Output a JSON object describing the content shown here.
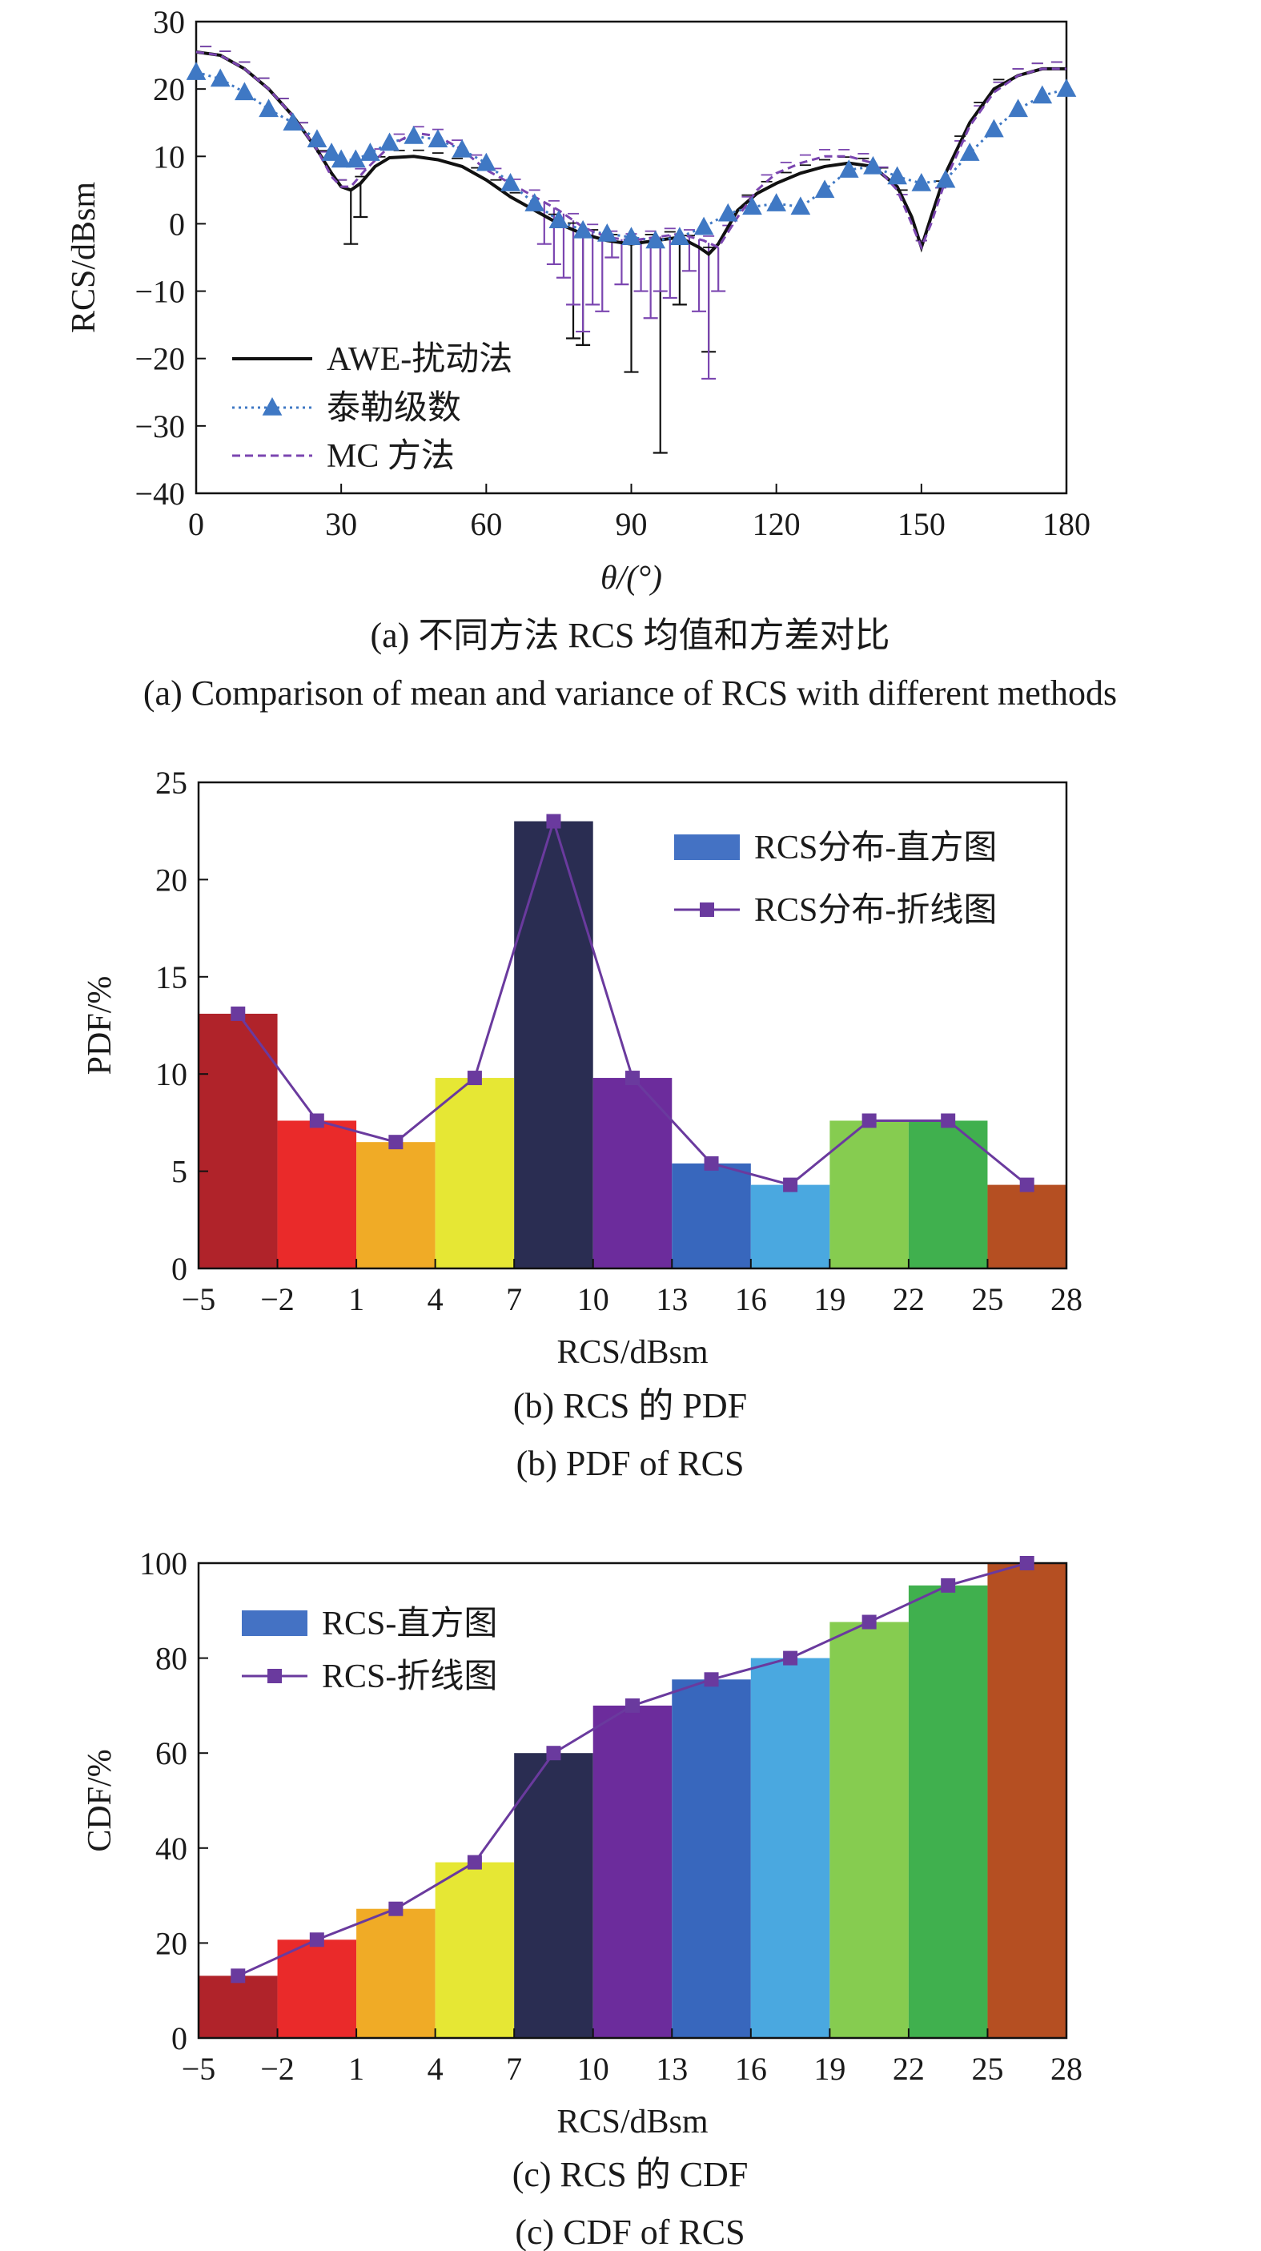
{
  "chart_data": [
    {
      "type": "line",
      "xlabel": "θ/(°)",
      "ylabel": "RCS/dBsm",
      "xlim": [
        0,
        180
      ],
      "ylim": [
        -40,
        30
      ],
      "xticks": [
        "0",
        "30",
        "60",
        "90",
        "120",
        "150",
        "180"
      ],
      "yticks": [
        "30",
        "20",
        "10",
        "0",
        "−10",
        "−20",
        "−30",
        "−40"
      ],
      "legend_position": "bottom-left",
      "caption_zh": "(a) 不同方法 RCS 均值和方差对比",
      "caption_en": "(a) Comparison of mean and variance of RCS with different methods",
      "colors": {
        "awe": "#111111",
        "taylor": "#3f78c4",
        "mc": "#7b46b0"
      },
      "series": [
        {
          "name": "AWE-扰动法",
          "style": "solid-black",
          "x": [
            0,
            5,
            10,
            15,
            20,
            25,
            28,
            30,
            32,
            34,
            37,
            40,
            45,
            50,
            55,
            60,
            65,
            70,
            75,
            80,
            85,
            90,
            95,
            100,
            104,
            106,
            108,
            112,
            116,
            120,
            125,
            130,
            135,
            140,
            145,
            148,
            150,
            152,
            155,
            160,
            165,
            170,
            175,
            180
          ],
          "y": [
            25.5,
            25,
            23,
            20,
            16,
            11,
            7.5,
            5.5,
            5,
            6,
            8.5,
            9.8,
            10,
            9.5,
            8.5,
            6.5,
            4,
            2,
            0,
            -1.5,
            -2.5,
            -3,
            -2.5,
            -2,
            -3.5,
            -4.5,
            -3,
            2,
            4.5,
            6,
            7.5,
            8.5,
            9,
            8.5,
            5.5,
            1,
            -3.5,
            1,
            7.5,
            15,
            20,
            22,
            23,
            23
          ]
        },
        {
          "name": "泰勒级数",
          "style": "dotted-triangle-blue",
          "x": [
            0,
            5,
            10,
            15,
            20,
            25,
            28,
            30,
            33,
            36,
            40,
            45,
            50,
            55,
            60,
            65,
            70,
            75,
            80,
            85,
            90,
            95,
            100,
            105,
            110,
            115,
            120,
            125,
            130,
            135,
            140,
            145,
            150,
            155,
            160,
            165,
            170,
            175,
            180
          ],
          "y": [
            22.5,
            21.5,
            19.5,
            17,
            15,
            12.5,
            10.5,
            9.5,
            9.5,
            10.5,
            12,
            13,
            12.5,
            11,
            9,
            6,
            3,
            0.5,
            -1,
            -1.5,
            -2,
            -2.5,
            -2,
            -0.5,
            1.5,
            2.5,
            3,
            2.5,
            5,
            8,
            8.5,
            7,
            6,
            6.5,
            10.5,
            14,
            17,
            19,
            20
          ]
        },
        {
          "name": "MC 方法",
          "style": "dashed-purple",
          "x": [
            0,
            5,
            10,
            15,
            20,
            25,
            28,
            30,
            32,
            35,
            40,
            45,
            50,
            55,
            60,
            65,
            70,
            75,
            80,
            85,
            90,
            95,
            100,
            105,
            108,
            112,
            116,
            120,
            125,
            130,
            135,
            140,
            145,
            148,
            150,
            152,
            155,
            160,
            165,
            170,
            175,
            180
          ],
          "y": [
            25.5,
            25,
            23,
            20,
            16,
            11,
            7,
            5.5,
            5.5,
            8,
            11.5,
            13.5,
            13,
            11,
            8,
            6,
            4,
            2,
            -0.5,
            -2,
            -2.5,
            -2,
            -1.5,
            -2.5,
            -3.5,
            1,
            5,
            7.5,
            9,
            10,
            10,
            9,
            5,
            0,
            -3.5,
            0,
            6.5,
            14.5,
            19.5,
            22,
            23,
            23
          ]
        }
      ],
      "error_bars": [
        {
          "series": "AWE-扰动法",
          "x": [
            32,
            34,
            78,
            80,
            90,
            96,
            100,
            106
          ],
          "low": [
            -3,
            1,
            -17,
            -18,
            -22,
            -34,
            -12,
            -19
          ]
        },
        {
          "series": "MC 方法",
          "x": [
            72,
            74,
            76,
            78,
            80,
            82,
            84,
            86,
            88,
            92,
            94,
            96,
            98,
            102,
            104,
            106,
            108
          ],
          "low": [
            -3,
            -6,
            -8,
            -12,
            -16,
            -12,
            -13,
            -5,
            -9,
            -10,
            -14,
            -10,
            -11,
            -7,
            -13,
            -23,
            -10
          ]
        }
      ]
    },
    {
      "type": "bar",
      "xlabel": "RCS/dBsm",
      "ylabel": "PDF/%",
      "xlim": [
        -5,
        28
      ],
      "ylim": [
        0,
        25
      ],
      "xticks": [
        "−5",
        "−2",
        "1",
        "4",
        "7",
        "10",
        "13",
        "16",
        "19",
        "22",
        "25",
        "28"
      ],
      "yticks": [
        "25",
        "20",
        "15",
        "10",
        "5",
        "0"
      ],
      "legend_position": "top-right",
      "caption_zh": "(b) RCS 的 PDF",
      "caption_en": "(b) PDF of RCS",
      "bin_edges": [
        -5,
        -2,
        1,
        4,
        7,
        10,
        13,
        16,
        19,
        22,
        25,
        28
      ],
      "values": [
        13.1,
        7.6,
        6.5,
        9.8,
        23,
        9.8,
        5.4,
        4.3,
        7.6,
        7.6,
        4.3
      ],
      "bar_colors": [
        "#b0232a",
        "#ea2a2a",
        "#f0ab26",
        "#e6e734",
        "#2a2d52",
        "#6c2c9c",
        "#3867bd",
        "#4aa8e0",
        "#86cc50",
        "#40b04e",
        "#b54f22"
      ],
      "line_color": "#6a3a9e",
      "series": [
        {
          "name": "RCS分布-直方图",
          "kind": "bar",
          "swatch": "#4472c4"
        },
        {
          "name": "RCS分布-折线图",
          "kind": "line-square"
        }
      ]
    },
    {
      "type": "bar",
      "xlabel": "RCS/dBsm",
      "ylabel": "CDF/%",
      "xlim": [
        -5,
        28
      ],
      "ylim": [
        0,
        100
      ],
      "xticks": [
        "−5",
        "−2",
        "1",
        "4",
        "7",
        "10",
        "13",
        "16",
        "19",
        "22",
        "25",
        "28"
      ],
      "yticks": [
        "100",
        "80",
        "60",
        "40",
        "20",
        "0"
      ],
      "legend_position": "top-left",
      "caption_zh": "(c) RCS 的 CDF",
      "caption_en": "(c) CDF of RCS",
      "bin_edges": [
        -5,
        -2,
        1,
        4,
        7,
        10,
        13,
        16,
        19,
        22,
        25,
        28
      ],
      "values": [
        13.1,
        20.7,
        27.2,
        37,
        60,
        70,
        75.5,
        80,
        87.6,
        95.3,
        100
      ],
      "bar_colors": [
        "#b0232a",
        "#ea2a2a",
        "#f0ab26",
        "#e6e734",
        "#2a2d52",
        "#6c2c9c",
        "#3867bd",
        "#4aa8e0",
        "#86cc50",
        "#40b04e",
        "#b54f22"
      ],
      "line_color": "#6a3a9e",
      "series": [
        {
          "name": "RCS-直方图",
          "kind": "bar",
          "swatch": "#4472c4"
        },
        {
          "name": "RCS-折线图",
          "kind": "line-square"
        }
      ]
    }
  ]
}
